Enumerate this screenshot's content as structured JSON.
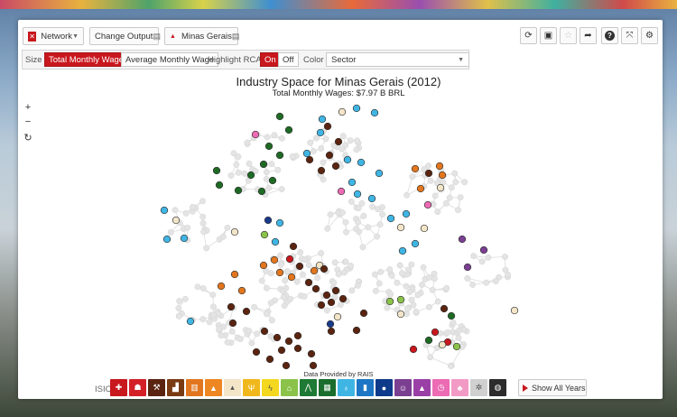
{
  "toolbar": {
    "network_label": "Network",
    "change_output_label": "Change Output",
    "location_label": "Minas Gerais"
  },
  "options": {
    "size_label": "Size",
    "size_options": [
      "Total Monthly Wages",
      "Average Monthly Wage"
    ],
    "rca_label": "Highlight RCA",
    "rca_on": "On",
    "rca_off": "Off",
    "color_label": "Color",
    "color_value": "Sector"
  },
  "viz": {
    "title": "Industry Space for Minas Gerais (2012)",
    "subtitle": "Total Monthly Wages: $7.97 B BRL",
    "source": "Data Provided by RAIS"
  },
  "legend": {
    "label": "ISIC",
    "show_all_label": "Show All Years",
    "sectors": [
      {
        "color": "#c8171d",
        "icon": "cross-icon",
        "glyph": "✚"
      },
      {
        "color": "#d32027",
        "icon": "people-icon",
        "glyph": "☗"
      },
      {
        "color": "#5a2410",
        "icon": "pickaxe-icon",
        "glyph": "⚒"
      },
      {
        "color": "#7a3a12",
        "icon": "factory-icon",
        "glyph": "▟"
      },
      {
        "color": "#e2761e",
        "icon": "book-icon",
        "glyph": "▥"
      },
      {
        "color": "#ee8722",
        "icon": "cone-icon",
        "glyph": "▲"
      },
      {
        "color": "#f3e5c8",
        "icon": "lab-icon",
        "glyph": "▴"
      },
      {
        "color": "#f0b81c",
        "icon": "utensils-icon",
        "glyph": "Ψ"
      },
      {
        "color": "#f4d71f",
        "icon": "plug-icon",
        "glyph": "ϟ"
      },
      {
        "color": "#8bc34a",
        "icon": "house-icon",
        "glyph": "⌂"
      },
      {
        "color": "#1e7a34",
        "icon": "road-icon",
        "glyph": "⋀"
      },
      {
        "color": "#1a6d2c",
        "icon": "bank-icon",
        "glyph": "▦"
      },
      {
        "color": "#3fb5e4",
        "icon": "flask-icon",
        "glyph": "♁"
      },
      {
        "color": "#1d76c4",
        "icon": "building-icon",
        "glyph": "▮"
      },
      {
        "color": "#0d3a8a",
        "icon": "drop-icon",
        "glyph": "●"
      },
      {
        "color": "#7b3f92",
        "icon": "mask-icon",
        "glyph": "☺"
      },
      {
        "color": "#9a3fa6",
        "icon": "school-icon",
        "glyph": "▲"
      },
      {
        "color": "#ec6bb4",
        "icon": "clock-icon",
        "glyph": "◷"
      },
      {
        "color": "#f29ac6",
        "icon": "cupcake-icon",
        "glyph": "♣"
      },
      {
        "color": "#d0d0d0",
        "icon": "gear-icon",
        "glyph": "✲"
      },
      {
        "color": "#2c2c2c",
        "icon": "globe-icon",
        "glyph": "◍"
      }
    ]
  },
  "icons": {
    "network": "network-icon",
    "refresh": "refresh-icon",
    "save": "save-icon",
    "star": "star-icon",
    "share": "share-icon",
    "help": "help-icon",
    "fullscreen": "fullscreen-icon",
    "settings": "settings-icon"
  }
}
